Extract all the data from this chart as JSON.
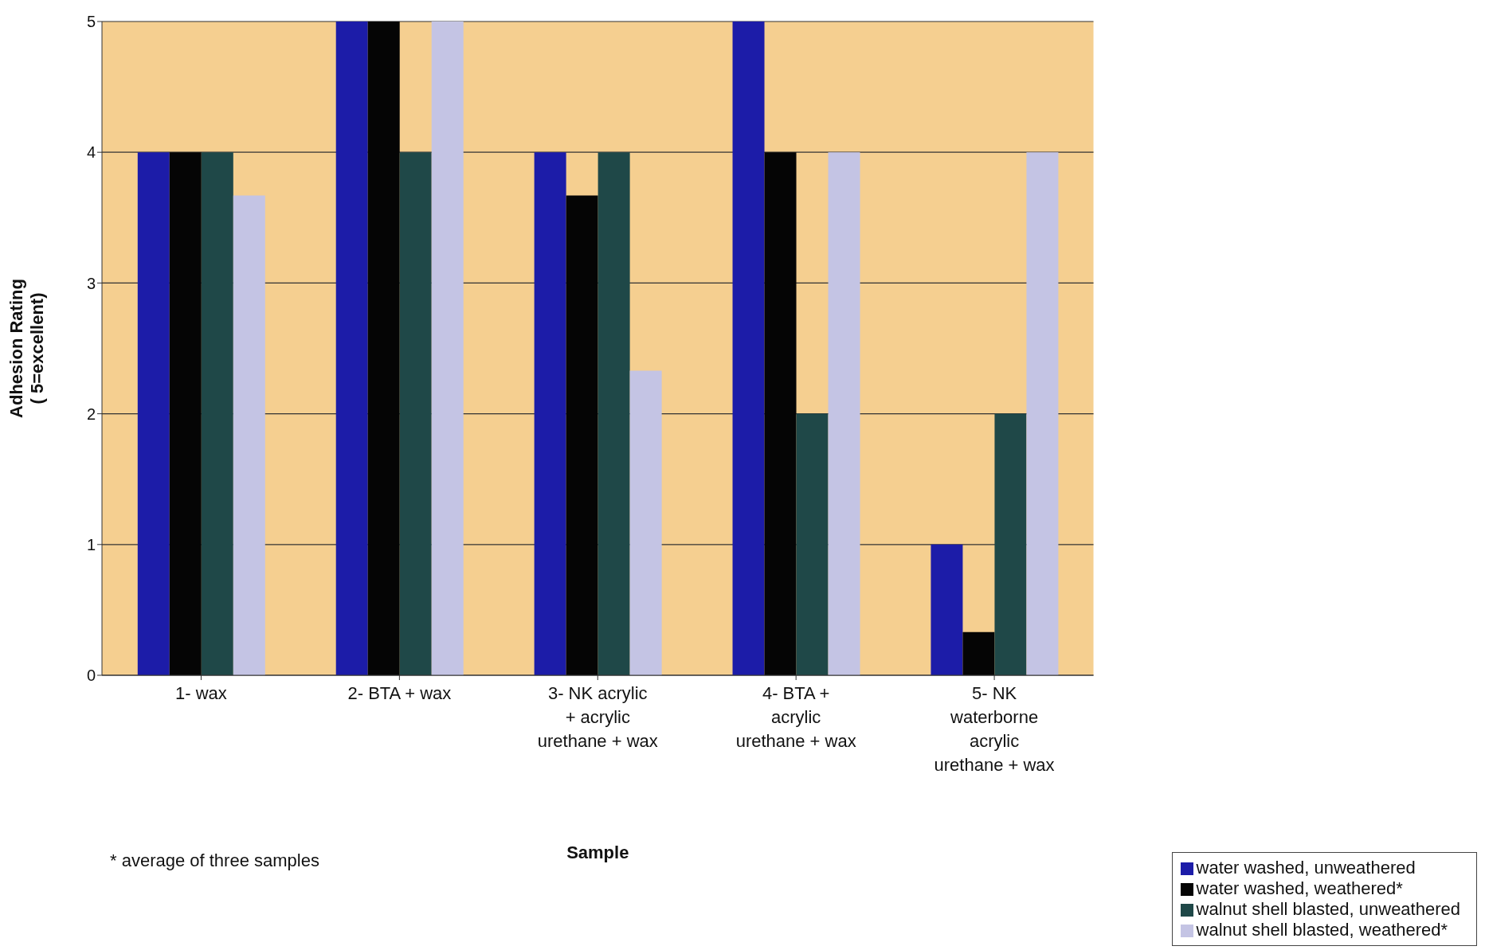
{
  "chart_data": {
    "type": "bar",
    "xlabel": "Sample",
    "ylabel": "Adhesion Rating\n( 5=excellent)",
    "categories": [
      "1- wax",
      "2- BTA + wax",
      "3- NK acrylic + acrylic urethane + wax",
      "4- BTA + acrylic urethane + wax",
      "5- NK waterborne acrylic urethane + wax"
    ],
    "series": [
      {
        "name": "water washed, unweathered",
        "color": "#1c1ca8",
        "values": [
          4,
          5,
          4,
          5,
          1
        ]
      },
      {
        "name": "water washed, weathered*",
        "color": "#050505",
        "values": [
          4,
          5,
          3.67,
          4,
          0.33
        ]
      },
      {
        "name": "walnut shell blasted, unweathered",
        "color": "#1f4848",
        "values": [
          4,
          4,
          4,
          2,
          2
        ]
      },
      {
        "name": "walnut shell blasted, weathered*",
        "color": "#c4c4e4",
        "values": [
          3.67,
          5,
          2.33,
          4,
          4
        ]
      }
    ],
    "ylim": [
      0,
      5
    ],
    "yticks": [
      0,
      1,
      2,
      3,
      4,
      5
    ],
    "grid": "y",
    "legend": "bottom right",
    "annotations": [
      "* average of three samples"
    ]
  }
}
